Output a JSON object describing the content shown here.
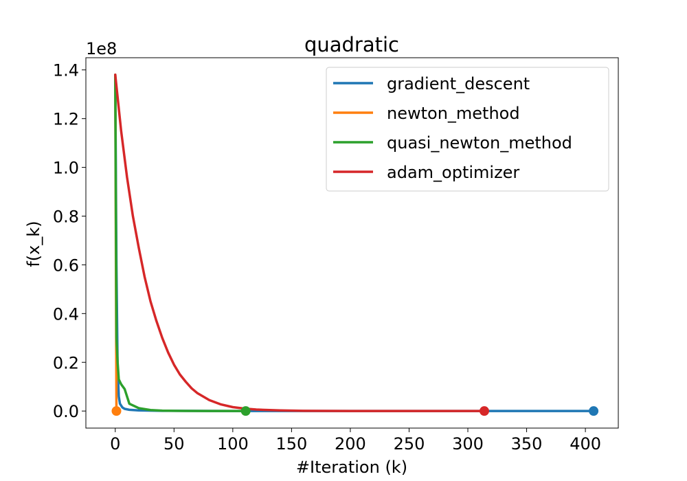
{
  "chart_data": {
    "type": "line",
    "title": "quadratic",
    "xlabel": "#Iteration (k)",
    "ylabel": "f(x_k)",
    "y_offset_label": "1e8",
    "y_scale_factor": 100000000,
    "xlim": [
      -25,
      428
    ],
    "ylim": [
      -7000000,
      145000000
    ],
    "x_ticks": [
      0,
      50,
      100,
      150,
      200,
      250,
      300,
      350,
      400
    ],
    "y_ticks": [
      0,
      20000000,
      40000000,
      60000000,
      80000000,
      100000000,
      120000000,
      140000000
    ],
    "x_tick_labels": [
      "0",
      "50",
      "100",
      "150",
      "200",
      "250",
      "300",
      "350",
      "400"
    ],
    "y_tick_labels": [
      "0.0",
      "0.2",
      "0.4",
      "0.6",
      "0.8",
      "1.0",
      "1.2",
      "1.4"
    ],
    "grid": false,
    "legend_position": "top-right",
    "series": [
      {
        "name": "gradient_descent",
        "color": "#1f77b4",
        "x": [
          0,
          1,
          2,
          3,
          4,
          6,
          8,
          12,
          20,
          40,
          100,
          200,
          300,
          407
        ],
        "y": [
          138000000,
          60000000,
          18000000,
          6000000,
          3000000,
          1500000,
          900000,
          500000,
          250000,
          100000,
          20000,
          5000,
          1000,
          0
        ],
        "end_marker": true
      },
      {
        "name": "newton_method",
        "color": "#ff7f0e",
        "x": [
          0,
          1
        ],
        "y": [
          138000000,
          0
        ],
        "end_marker": true
      },
      {
        "name": "quasi_newton_method",
        "color": "#2ca02c",
        "x": [
          0,
          1,
          2,
          3,
          5,
          8,
          12,
          20,
          30,
          40,
          60,
          80,
          111
        ],
        "y": [
          138000000,
          30000000,
          20000000,
          13000000,
          11000000,
          9000000,
          3000000,
          1200000,
          400000,
          150000,
          40000,
          10000,
          0
        ],
        "end_marker": true
      },
      {
        "name": "adam_optimizer",
        "color": "#d62728",
        "x": [
          0,
          5,
          10,
          15,
          20,
          25,
          30,
          35,
          40,
          45,
          50,
          55,
          60,
          65,
          70,
          80,
          90,
          100,
          110,
          120,
          140,
          160,
          200,
          250,
          300,
          314
        ],
        "y": [
          138000000,
          115000000,
          96000000,
          80000000,
          67000000,
          55000000,
          45000000,
          37000000,
          30000000,
          24000000,
          19000000,
          15000000,
          12000000,
          9300000,
          7300000,
          4500000,
          2700000,
          1600000,
          1000000,
          600000,
          250000,
          100000,
          20000,
          5000,
          1000,
          0
        ],
        "end_marker": true
      }
    ]
  }
}
